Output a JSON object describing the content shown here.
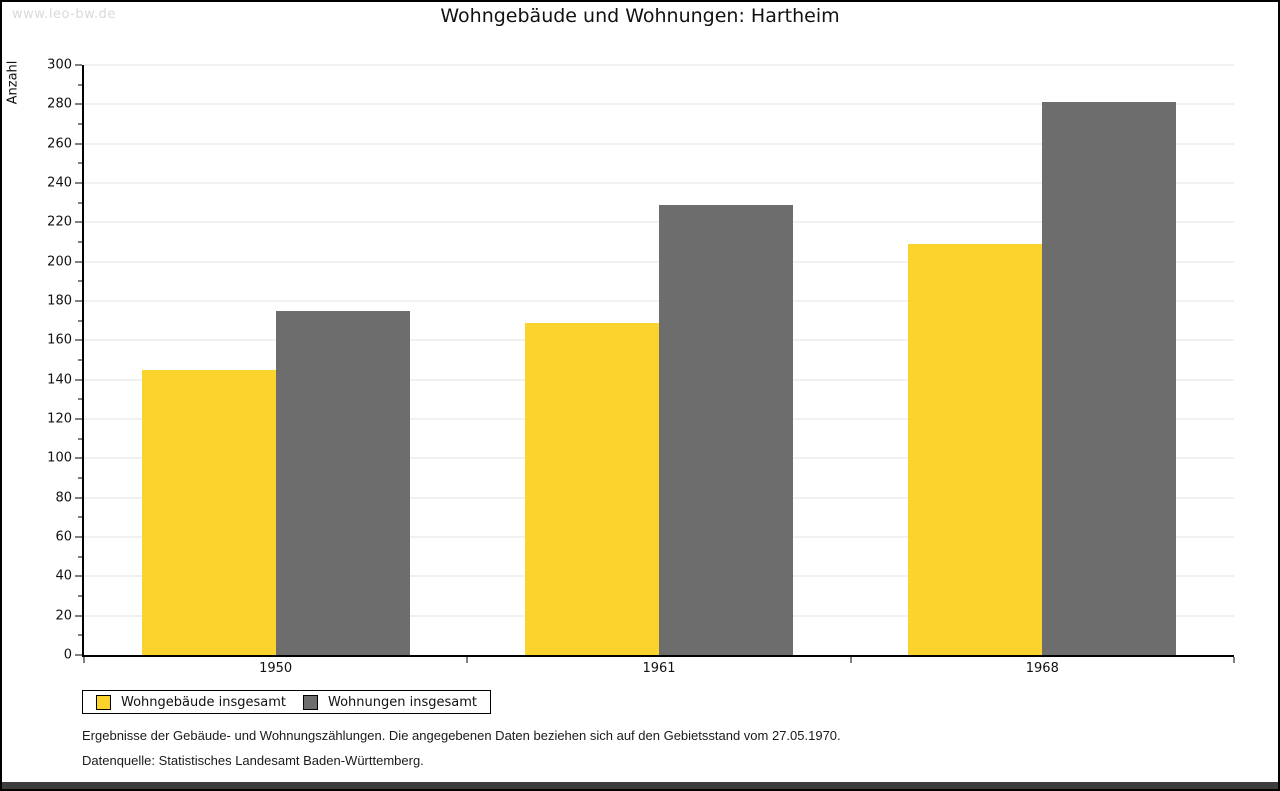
{
  "page": {
    "watermark": "www.leo-bw.de"
  },
  "chart_data": {
    "type": "bar",
    "title": "Wohngebäude und Wohnungen: Hartheim",
    "ylabel": "Anzahl",
    "xlabel": "",
    "categories": [
      "1950",
      "1961",
      "1968"
    ],
    "series": [
      {
        "name": "Wohngebäude insgesamt",
        "color": "#fcd32d",
        "values": [
          145,
          169,
          209
        ]
      },
      {
        "name": "Wohnungen insgesamt",
        "color": "#6d6d6d",
        "values": [
          175,
          229,
          281
        ]
      }
    ],
    "ylim": [
      0,
      300
    ],
    "ytick_step": 20,
    "yminor_step": 10,
    "grid": true,
    "gridline_color": "#e3e3e3",
    "axis_color": "#000000",
    "legend_position": "bottom-left"
  },
  "footnotes": {
    "line1": "Ergebnisse der Gebäude- und Wohnungszählungen. Die angegebenen Daten beziehen sich auf den Gebietsstand vom 27.05.1970.",
    "line2": "Datenquelle: Statistisches Landesamt Baden-Württemberg."
  }
}
